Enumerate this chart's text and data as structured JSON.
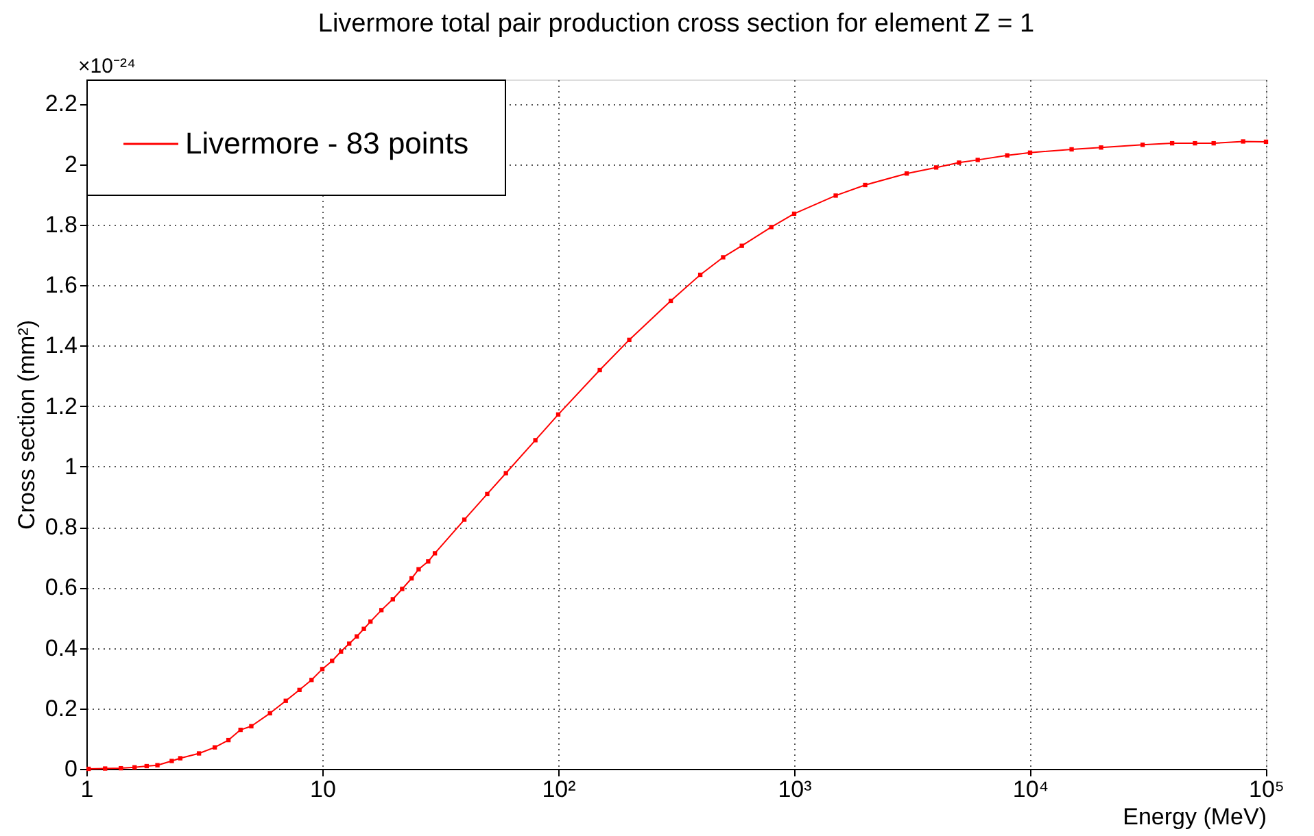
{
  "chart_data": {
    "type": "line",
    "title": "Livermore total pair production cross section for element Z = 1",
    "xlabel": "Energy (MeV)",
    "ylabel": "Cross section (mm²)",
    "annotations": [
      "×10⁻²⁴"
    ],
    "log": "x",
    "x": [
      1.022,
      1.2,
      1.4,
      1.6,
      1.8,
      2,
      2.3,
      2.5,
      3,
      3.5,
      4,
      4.5,
      5,
      6,
      7,
      8,
      9,
      10,
      11,
      12,
      13,
      14,
      15,
      16,
      17.8,
      19.9,
      21.8,
      23.9,
      25.6,
      28.1,
      30,
      40,
      50,
      60,
      80,
      100,
      150,
      200,
      300,
      400,
      500,
      600,
      800,
      1000,
      1500,
      2000,
      3000,
      4000,
      5000,
      6000,
      8000,
      10000,
      15000,
      20000,
      30000,
      40000,
      50000,
      60000,
      80000,
      100000
    ],
    "series": [
      {
        "name": "Livermore - 83 points",
        "color": "#ff0000",
        "values": [
          0,
          0.001,
          0.002,
          0.005,
          0.009,
          0.012,
          0.026,
          0.035,
          0.051,
          0.071,
          0.095,
          0.129,
          0.141,
          0.184,
          0.225,
          0.261,
          0.294,
          0.33,
          0.357,
          0.388,
          0.414,
          0.438,
          0.463,
          0.487,
          0.525,
          0.561,
          0.595,
          0.63,
          0.66,
          0.686,
          0.713,
          0.824,
          0.909,
          0.978,
          1.087,
          1.172,
          1.319,
          1.419,
          1.548,
          1.634,
          1.692,
          1.73,
          1.792,
          1.836,
          1.896,
          1.931,
          1.969,
          1.989,
          2.005,
          2.014,
          2.029,
          2.038,
          2.049,
          2.055,
          2.064,
          2.069,
          2.069,
          2.069,
          2.075,
          2.074
        ]
      }
    ],
    "xlim": [
      1,
      100000
    ],
    "xticks": [
      1,
      10,
      {
        "value": 100,
        "label": "10²"
      },
      {
        "value": 1000,
        "label": "10³"
      },
      {
        "value": 10000,
        "label": "10⁴"
      },
      {
        "value": 100000,
        "label": "10⁵"
      }
    ],
    "ylim": [
      0,
      2.28
    ],
    "yticks": [
      0,
      0.2,
      0.4,
      0.6,
      0.8,
      1,
      1.2,
      1.4,
      1.6,
      1.8,
      2,
      2.2
    ],
    "grid": true,
    "legend": "top left",
    "marker": "square",
    "line_style": "solid"
  }
}
